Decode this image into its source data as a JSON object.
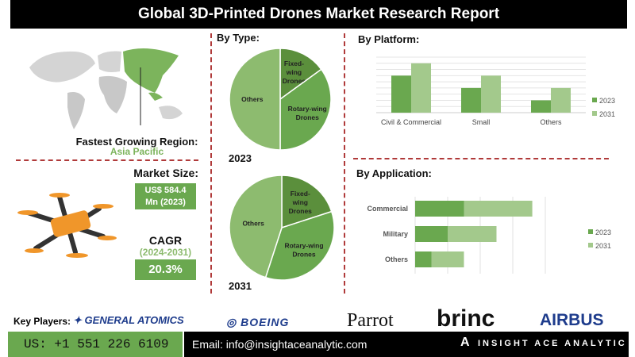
{
  "title": "Global 3D-Printed Drones Market Research Report",
  "region": {
    "label": "Fastest Growing Region:",
    "value": "Asia Pacific"
  },
  "market": {
    "label": "Market Size:",
    "value_line1": "US$ 584.4",
    "value_line2": "Mn (2023)"
  },
  "cagr": {
    "label": "CAGR",
    "period": "(2024-2031)",
    "value": "20.3%"
  },
  "colors": {
    "dark_green": "#5b8f3c",
    "mid_green": "#6aa84f",
    "light_green": "#a3c98c",
    "others_green": "#8dbb6f",
    "divider": "#b03a3a"
  },
  "chart_data": [
    {
      "type": "pie",
      "title": "By Type:",
      "year": "2023",
      "slices": [
        {
          "label": "Fixed-wing Drones",
          "value": 15
        },
        {
          "label": "Rotary-wing Drones",
          "value": 35
        },
        {
          "label": "Others",
          "value": 50
        }
      ]
    },
    {
      "type": "pie",
      "year": "2031",
      "slices": [
        {
          "label": "Fixed-wing Drones",
          "value": 20
        },
        {
          "label": "Rotary-wing Drones",
          "value": 35
        },
        {
          "label": "Others",
          "value": 45
        }
      ]
    },
    {
      "type": "bar",
      "title": "By Platform:",
      "categories": [
        "Civil & Commercial",
        "Small",
        "Others"
      ],
      "series": [
        {
          "name": "2023",
          "values": [
            6,
            4,
            2
          ]
        },
        {
          "name": "2031",
          "values": [
            8,
            6,
            4
          ]
        }
      ],
      "ylim": [
        0,
        9
      ],
      "grid": true,
      "legend": "right"
    },
    {
      "type": "bar",
      "orientation": "horizontal-stacked",
      "title": "By Application:",
      "categories": [
        "Commercial",
        "Military",
        "Others"
      ],
      "series": [
        {
          "name": "2023",
          "values": [
            1.5,
            1.0,
            0.5
          ]
        },
        {
          "name": "2031",
          "values": [
            2.1,
            1.5,
            1.0
          ]
        }
      ],
      "xlim": [
        0,
        4
      ],
      "grid": true,
      "legend": "right"
    }
  ],
  "key_players": {
    "label": "Key Players:",
    "companies": [
      "GENERAL ATOMICS",
      "BOEING",
      "Parrot",
      "brinc",
      "AIRBUS"
    ]
  },
  "footer": {
    "phone": "US: +1 551 226 6109",
    "email": "Email: info@insightaceanalytic.com",
    "brand": "INSIGHT ACE ANALYTIC"
  }
}
